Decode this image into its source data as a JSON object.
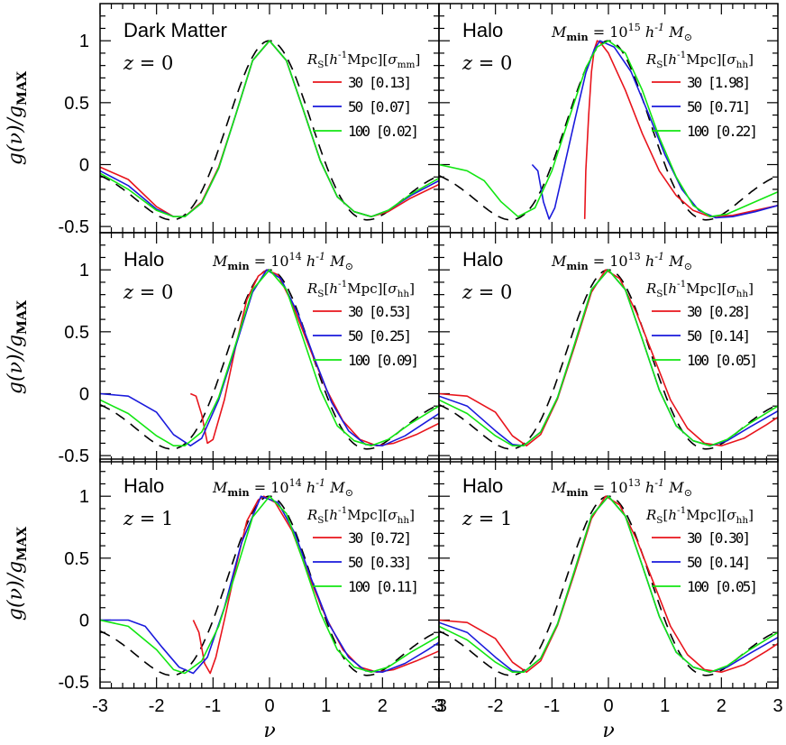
{
  "figure": {
    "xlabel": "ν",
    "ylabel": "g(ν)/g_MAX"
  },
  "chart_data": {
    "type": "line",
    "xlim": [
      -3,
      3
    ],
    "ylim": [
      -0.55,
      1.3
    ],
    "x_ticks": [
      -3,
      -2,
      -1,
      0,
      1,
      2,
      3
    ],
    "y_ticks": [
      -0.5,
      0,
      0.5,
      1
    ],
    "y_tick_labels": [
      "-0.5",
      "0",
      "0.5",
      "1"
    ],
    "colors": {
      "30": "#e8141c",
      "50": "#1a1adc",
      "100": "#12e612",
      "gaussian": "#000000"
    },
    "panels": [
      {
        "title": "Dark Matter",
        "zlabel": "z = 0",
        "mmin": "",
        "legend_header": "R_S[h^-1Mpc][σ_mm]",
        "series": [
          {
            "name": "30 [0.13]",
            "color": "#e8141c",
            "x": [
              -3.0,
              -2.5,
              -2.0,
              -1.7,
              -1.5,
              -1.2,
              -0.9,
              -0.6,
              -0.3,
              0.0,
              0.3,
              0.6,
              0.9,
              1.2,
              1.5,
              1.8,
              2.1,
              2.5,
              3.0
            ],
            "y": [
              -0.02,
              -0.12,
              -0.34,
              -0.42,
              -0.42,
              -0.3,
              -0.02,
              0.4,
              0.84,
              1.0,
              0.84,
              0.44,
              0.03,
              -0.26,
              -0.38,
              -0.42,
              -0.38,
              -0.27,
              -0.16
            ]
          },
          {
            "name": "50 [0.07]",
            "color": "#1a1adc",
            "x": [
              -3.0,
              -2.5,
              -2.0,
              -1.7,
              -1.5,
              -1.2,
              -0.9,
              -0.6,
              -0.3,
              0.0,
              0.3,
              0.6,
              0.9,
              1.2,
              1.5,
              1.8,
              2.1,
              2.5,
              3.0
            ],
            "y": [
              -0.05,
              -0.17,
              -0.36,
              -0.42,
              -0.42,
              -0.31,
              -0.03,
              0.4,
              0.84,
              1.0,
              0.84,
              0.44,
              0.03,
              -0.26,
              -0.38,
              -0.42,
              -0.37,
              -0.25,
              -0.13
            ]
          },
          {
            "name": "100 [0.02]",
            "color": "#12e612",
            "x": [
              -3.0,
              -2.5,
              -2.0,
              -1.7,
              -1.5,
              -1.2,
              -0.9,
              -0.6,
              -0.3,
              0.0,
              0.3,
              0.6,
              0.9,
              1.2,
              1.5,
              1.8,
              2.1,
              2.5,
              3.0
            ],
            "y": [
              -0.07,
              -0.2,
              -0.37,
              -0.42,
              -0.42,
              -0.31,
              -0.03,
              0.4,
              0.84,
              1.0,
              0.84,
              0.44,
              0.03,
              -0.26,
              -0.38,
              -0.42,
              -0.37,
              -0.24,
              -0.11
            ]
          }
        ]
      },
      {
        "title": "Halo",
        "zlabel": "z = 0",
        "mmin": "M_min = 10^15 h^-1 M_⊙",
        "legend_header": "R_S[h^-1Mpc][σ_hh]",
        "series": [
          {
            "name": "30 [1.98]",
            "color": "#e8141c",
            "x": [
              -0.42,
              -0.4,
              -0.35,
              -0.3,
              -0.25,
              -0.2,
              -0.15,
              0.0,
              0.3,
              0.6,
              0.9,
              1.2,
              1.5,
              1.8,
              2.2,
              2.6,
              3.0
            ],
            "y": [
              -0.44,
              -0.05,
              0.4,
              0.75,
              0.93,
              1.0,
              0.99,
              0.9,
              0.6,
              0.25,
              -0.05,
              -0.25,
              -0.37,
              -0.42,
              -0.41,
              -0.37,
              -0.33
            ]
          },
          {
            "name": "50 [0.71]",
            "color": "#1a1adc",
            "x": [
              -1.35,
              -1.25,
              -1.15,
              -1.05,
              -0.95,
              -0.8,
              -0.6,
              -0.4,
              -0.25,
              -0.15,
              0.1,
              0.4,
              0.7,
              1.0,
              1.3,
              1.6,
              1.9,
              2.2,
              2.6,
              3.0
            ],
            "y": [
              0.0,
              -0.05,
              -0.3,
              -0.44,
              -0.35,
              -0.05,
              0.35,
              0.74,
              0.93,
              1.0,
              0.95,
              0.75,
              0.42,
              0.08,
              -0.2,
              -0.37,
              -0.43,
              -0.42,
              -0.38,
              -0.33
            ]
          },
          {
            "name": "100 [0.22]",
            "color": "#12e612",
            "x": [
              -3.0,
              -2.5,
              -2.2,
              -1.9,
              -1.6,
              -1.3,
              -1.0,
              -0.7,
              -0.4,
              -0.2,
              0.0,
              0.3,
              0.6,
              0.9,
              1.2,
              1.5,
              1.8,
              2.1,
              2.5,
              3.0
            ],
            "y": [
              0.0,
              -0.05,
              -0.13,
              -0.3,
              -0.42,
              -0.35,
              -0.05,
              0.37,
              0.78,
              0.95,
              1.0,
              0.9,
              0.6,
              0.22,
              -0.1,
              -0.33,
              -0.42,
              -0.4,
              -0.32,
              -0.22
            ]
          }
        ]
      },
      {
        "title": "Halo",
        "zlabel": "z = 0",
        "mmin": "M_min = 10^14 h^-1 M_⊙",
        "legend_header": "R_S[h^-1Mpc][σ_hh]",
        "series": [
          {
            "name": "30 [0.53]",
            "color": "#e8141c",
            "x": [
              -1.4,
              -1.3,
              -1.2,
              -1.1,
              -1.0,
              -0.8,
              -0.6,
              -0.4,
              -0.2,
              -0.05,
              0.15,
              0.4,
              0.7,
              1.0,
              1.3,
              1.6,
              1.9,
              2.2,
              2.6,
              3.0
            ],
            "y": [
              0.0,
              -0.02,
              -0.17,
              -0.4,
              -0.37,
              -0.05,
              0.38,
              0.76,
              0.95,
              1.0,
              0.96,
              0.73,
              0.38,
              0.04,
              -0.22,
              -0.37,
              -0.42,
              -0.4,
              -0.33,
              -0.24
            ]
          },
          {
            "name": "50 [0.25]",
            "color": "#1a1adc",
            "x": [
              -3.0,
              -2.5,
              -2.0,
              -1.7,
              -1.4,
              -1.2,
              -0.9,
              -0.6,
              -0.3,
              -0.05,
              0.2,
              0.5,
              0.8,
              1.1,
              1.4,
              1.7,
              2.0,
              2.4,
              2.8,
              3.0
            ],
            "y": [
              0.0,
              -0.02,
              -0.15,
              -0.33,
              -0.42,
              -0.36,
              -0.05,
              0.38,
              0.82,
              1.0,
              0.93,
              0.65,
              0.28,
              -0.07,
              -0.3,
              -0.41,
              -0.42,
              -0.34,
              -0.22,
              -0.16
            ]
          },
          {
            "name": "100 [0.09]",
            "color": "#12e612",
            "x": [
              -3.0,
              -2.5,
              -2.0,
              -1.7,
              -1.5,
              -1.2,
              -0.9,
              -0.6,
              -0.3,
              0.0,
              0.3,
              0.6,
              0.9,
              1.2,
              1.5,
              1.8,
              2.1,
              2.5,
              3.0
            ],
            "y": [
              -0.05,
              -0.16,
              -0.34,
              -0.42,
              -0.42,
              -0.31,
              -0.03,
              0.4,
              0.84,
              1.0,
              0.84,
              0.44,
              0.03,
              -0.26,
              -0.38,
              -0.42,
              -0.37,
              -0.24,
              -0.1
            ]
          }
        ]
      },
      {
        "title": "Halo",
        "zlabel": "z = 0",
        "mmin": "M_min = 10^13 h^-1 M_⊙",
        "legend_header": "R_S[h^-1Mpc][σ_hh]",
        "series": [
          {
            "name": "30 [0.28]",
            "color": "#e8141c",
            "x": [
              -3.0,
              -2.5,
              -2.0,
              -1.7,
              -1.45,
              -1.2,
              -0.9,
              -0.6,
              -0.3,
              -0.05,
              0.2,
              0.5,
              0.8,
              1.1,
              1.4,
              1.7,
              2.0,
              2.4,
              2.8,
              3.0
            ],
            "y": [
              0.0,
              -0.02,
              -0.15,
              -0.34,
              -0.42,
              -0.33,
              -0.04,
              0.38,
              0.82,
              1.0,
              0.93,
              0.65,
              0.3,
              -0.05,
              -0.28,
              -0.4,
              -0.42,
              -0.36,
              -0.25,
              -0.19
            ]
          },
          {
            "name": "50 [0.14]",
            "color": "#1a1adc",
            "x": [
              -3.0,
              -2.5,
              -2.0,
              -1.7,
              -1.5,
              -1.2,
              -0.9,
              -0.6,
              -0.3,
              0.0,
              0.3,
              0.6,
              0.9,
              1.2,
              1.5,
              1.8,
              2.1,
              2.5,
              3.0
            ],
            "y": [
              -0.02,
              -0.1,
              -0.3,
              -0.41,
              -0.42,
              -0.31,
              -0.03,
              0.4,
              0.84,
              1.0,
              0.84,
              0.44,
              0.03,
              -0.26,
              -0.38,
              -0.42,
              -0.38,
              -0.27,
              -0.14
            ]
          },
          {
            "name": "100 [0.05]",
            "color": "#12e612",
            "x": [
              -3.0,
              -2.5,
              -2.0,
              -1.7,
              -1.5,
              -1.2,
              -0.9,
              -0.6,
              -0.3,
              0.0,
              0.3,
              0.6,
              0.9,
              1.2,
              1.5,
              1.8,
              2.1,
              2.5,
              3.0
            ],
            "y": [
              -0.05,
              -0.16,
              -0.34,
              -0.42,
              -0.42,
              -0.31,
              -0.03,
              0.4,
              0.84,
              1.0,
              0.84,
              0.44,
              0.03,
              -0.26,
              -0.38,
              -0.42,
              -0.37,
              -0.24,
              -0.1
            ]
          }
        ]
      },
      {
        "title": "Halo",
        "zlabel": "z = 1",
        "mmin": "M_min = 10^14 h^-1 M_⊙",
        "legend_header": "R_S[h^-1Mpc][σ_hh]",
        "series": [
          {
            "name": "30 [0.72]",
            "color": "#e8141c",
            "x": [
              -1.35,
              -1.25,
              -1.15,
              -1.05,
              -0.95,
              -0.8,
              -0.6,
              -0.4,
              -0.2,
              -0.1,
              0.1,
              0.4,
              0.7,
              1.0,
              1.3,
              1.6,
              1.9,
              2.2,
              2.6,
              3.0
            ],
            "y": [
              0.0,
              -0.1,
              -0.35,
              -0.43,
              -0.3,
              0.0,
              0.42,
              0.8,
              0.97,
              1.0,
              0.95,
              0.72,
              0.35,
              0.02,
              -0.24,
              -0.38,
              -0.42,
              -0.4,
              -0.33,
              -0.25
            ]
          },
          {
            "name": "50 [0.33]",
            "color": "#1a1adc",
            "x": [
              -3.0,
              -2.5,
              -2.2,
              -1.9,
              -1.6,
              -1.35,
              -1.1,
              -0.8,
              -0.5,
              -0.15,
              0.15,
              0.45,
              0.75,
              1.05,
              1.4,
              1.7,
              2.0,
              2.4,
              2.8,
              3.0
            ],
            "y": [
              0.0,
              0.0,
              -0.05,
              -0.22,
              -0.38,
              -0.43,
              -0.3,
              0.1,
              0.62,
              1.0,
              0.95,
              0.7,
              0.32,
              -0.03,
              -0.3,
              -0.41,
              -0.42,
              -0.35,
              -0.24,
              -0.18
            ]
          },
          {
            "name": "100 [0.11]",
            "color": "#12e612",
            "x": [
              -3.0,
              -2.5,
              -2.0,
              -1.7,
              -1.5,
              -1.2,
              -0.9,
              -0.6,
              -0.3,
              0.0,
              0.3,
              0.6,
              0.9,
              1.2,
              1.5,
              1.8,
              2.1,
              2.5,
              3.0
            ],
            "y": [
              0.0,
              -0.05,
              -0.24,
              -0.4,
              -0.43,
              -0.33,
              -0.05,
              0.38,
              0.83,
              1.0,
              0.86,
              0.47,
              0.06,
              -0.24,
              -0.38,
              -0.42,
              -0.38,
              -0.26,
              -0.13
            ]
          }
        ]
      },
      {
        "title": "Halo",
        "zlabel": "z = 1",
        "mmin": "M_min = 10^13 h^-1 M_⊙",
        "legend_header": "R_S[h^-1Mpc][σ_hh]",
        "series": [
          {
            "name": "30 [0.30]",
            "color": "#e8141c",
            "x": [
              -3.0,
              -2.5,
              -2.0,
              -1.7,
              -1.45,
              -1.2,
              -0.9,
              -0.6,
              -0.3,
              -0.05,
              0.2,
              0.5,
              0.8,
              1.1,
              1.4,
              1.7,
              2.0,
              2.4,
              2.8,
              3.0
            ],
            "y": [
              0.0,
              -0.02,
              -0.15,
              -0.34,
              -0.42,
              -0.33,
              -0.04,
              0.38,
              0.82,
              1.0,
              0.93,
              0.65,
              0.3,
              -0.05,
              -0.28,
              -0.4,
              -0.42,
              -0.36,
              -0.25,
              -0.19
            ]
          },
          {
            "name": "50 [0.14]",
            "color": "#1a1adc",
            "x": [
              -3.0,
              -2.5,
              -2.0,
              -1.7,
              -1.5,
              -1.2,
              -0.9,
              -0.6,
              -0.3,
              0.0,
              0.3,
              0.6,
              0.9,
              1.2,
              1.5,
              1.8,
              2.1,
              2.5,
              3.0
            ],
            "y": [
              -0.02,
              -0.1,
              -0.3,
              -0.41,
              -0.42,
              -0.31,
              -0.03,
              0.4,
              0.84,
              1.0,
              0.84,
              0.44,
              0.03,
              -0.26,
              -0.38,
              -0.42,
              -0.38,
              -0.27,
              -0.14
            ]
          },
          {
            "name": "100 [0.05]",
            "color": "#12e612",
            "x": [
              -3.0,
              -2.5,
              -2.0,
              -1.7,
              -1.5,
              -1.2,
              -0.9,
              -0.6,
              -0.3,
              0.0,
              0.3,
              0.6,
              0.9,
              1.2,
              1.5,
              1.8,
              2.1,
              2.5,
              3.0
            ],
            "y": [
              -0.05,
              -0.16,
              -0.34,
              -0.42,
              -0.42,
              -0.31,
              -0.03,
              0.4,
              0.84,
              1.0,
              0.84,
              0.44,
              0.03,
              -0.26,
              -0.38,
              -0.42,
              -0.37,
              -0.24,
              -0.1
            ]
          }
        ]
      }
    ]
  }
}
